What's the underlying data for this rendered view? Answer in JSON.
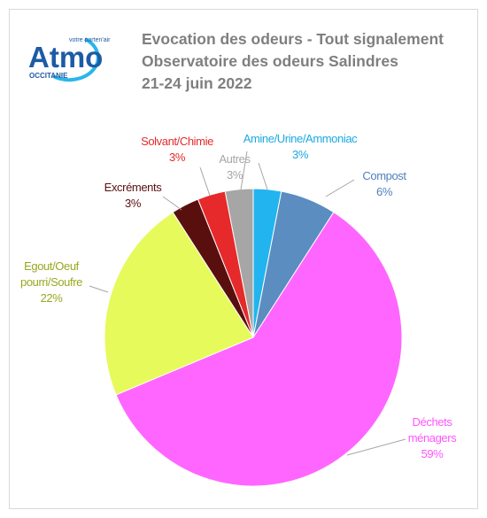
{
  "logo": {
    "name": "Atmo",
    "tagline": "votre parten'air",
    "region": "OCCITANIE"
  },
  "chart_data": {
    "type": "pie",
    "title": "Evocation des odeurs - Tout signalement",
    "subtitle": "Observatoire des odeurs Salindres",
    "date": "21-24 juin 2022",
    "categories": [
      "Amine/Urine/Ammoniac",
      "Compost",
      "Déchets ménagers",
      "Egout/Oeuf pourri/Soufre",
      "Excréments",
      "Solvant/Chimie",
      "Autres"
    ],
    "values": [
      3,
      6,
      59,
      22,
      3,
      3,
      3
    ],
    "value_labels": [
      "3%",
      "6%",
      "59%",
      "22%",
      "3%",
      "3%",
      "3%"
    ],
    "colors": [
      "#22b4ef",
      "#5b8dc0",
      "#ff66ff",
      "#e6fa5c",
      "#5a0f0f",
      "#e62a2b",
      "#a6a6a6"
    ],
    "label_colors": [
      "#1aa9e2",
      "#4f81bd",
      "#ff55ff",
      "#98a81e",
      "#5a0f0f",
      "#e62a2b",
      "#a6a6a6"
    ]
  }
}
